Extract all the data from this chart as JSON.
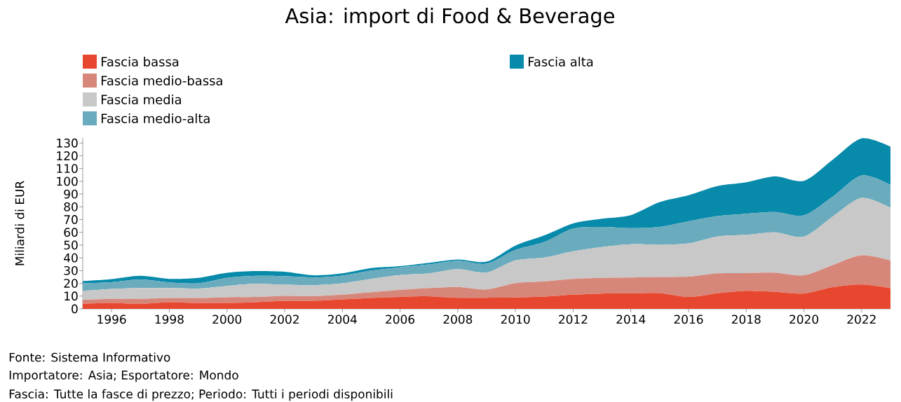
{
  "chart_data": {
    "type": "area",
    "stacked": true,
    "title": "Asia: import di Food & Beverage",
    "ylabel": "Miliardi di EUR",
    "x": [
      1995,
      1996,
      1997,
      1998,
      1999,
      2000,
      2001,
      2002,
      2003,
      2004,
      2005,
      2006,
      2007,
      2008,
      2009,
      2010,
      2011,
      2012,
      2013,
      2014,
      2015,
      2016,
      2017,
      2018,
      2019,
      2020,
      2021,
      2022,
      2023
    ],
    "series": [
      {
        "name": "Fascia bassa",
        "color": "#e8472f",
        "values": [
          3.9,
          4.6,
          3.9,
          5.2,
          4.6,
          4.6,
          5.2,
          6.3,
          6.3,
          7.4,
          8.5,
          9.3,
          9.8,
          8.7,
          8.7,
          8.9,
          9.6,
          11.1,
          12.0,
          12.2,
          12.4,
          9.3,
          12.2,
          14.1,
          13.3,
          12.0,
          17.0,
          19.1,
          16.3
        ]
      },
      {
        "name": "Fascia medio-bassa",
        "color": "#d6877a",
        "values": [
          3.1,
          3.2,
          3.9,
          3.3,
          3.9,
          4.5,
          4.1,
          3.9,
          3.7,
          3.7,
          4.5,
          5.5,
          6.5,
          8.5,
          6.5,
          11.3,
          11.9,
          12.4,
          12.3,
          12.4,
          12.6,
          15.9,
          15.6,
          13.9,
          15.0,
          14.3,
          17.3,
          22.9,
          21.7
        ]
      },
      {
        "name": "Fascia media",
        "color": "#c8c8c8",
        "values": [
          7.0,
          7.8,
          8.5,
          7.8,
          7.4,
          8.9,
          10.5,
          8.7,
          8.5,
          8.9,
          10.5,
          11.7,
          11.5,
          13.9,
          13.3,
          17.8,
          18.7,
          21.7,
          24.2,
          26.1,
          25.2,
          26.1,
          28.9,
          30.0,
          31.7,
          30.4,
          38.1,
          45.0,
          41.3
        ]
      },
      {
        "name": "Fascia medio-alta",
        "color": "#6aabbd",
        "values": [
          6.0,
          5.3,
          6.7,
          4.4,
          4.1,
          6.3,
          6.1,
          6.7,
          6.1,
          6.1,
          6.5,
          6.1,
          7.0,
          6.7,
          6.9,
          8.3,
          12.2,
          17.8,
          15.8,
          12.6,
          14.1,
          17.4,
          16.1,
          16.6,
          15.9,
          16.6,
          15.6,
          17.6,
          17.9
        ]
      },
      {
        "name": "Fascia alta",
        "color": "#088aab",
        "values": [
          1.7,
          2.4,
          2.9,
          2.8,
          4.3,
          4.0,
          3.7,
          3.5,
          1.7,
          1.7,
          2.0,
          0.9,
          1.3,
          0.9,
          1.6,
          3.3,
          5.2,
          4.0,
          6.4,
          10.2,
          19.4,
          20.4,
          23.5,
          24.7,
          28.0,
          27.1,
          29.0,
          29.1,
          30.0
        ]
      }
    ],
    "xlim": [
      1995,
      2023
    ],
    "xticks": [
      1996,
      1998,
      2000,
      2002,
      2004,
      2006,
      2008,
      2010,
      2012,
      2014,
      2016,
      2018,
      2020,
      2022
    ],
    "ylim": [
      0,
      134
    ],
    "yticks": [
      0,
      10,
      20,
      30,
      40,
      50,
      60,
      70,
      80,
      90,
      100,
      110,
      120,
      130
    ],
    "grid": false,
    "legend": "top",
    "annotations": [
      "Fonte: Sistema Informativo",
      "Importatore: Asia; Esportatore: Mondo",
      "Fascia: Tutte la fasce di prezzo; Periodo: Tutti i periodi disponibili"
    ]
  }
}
